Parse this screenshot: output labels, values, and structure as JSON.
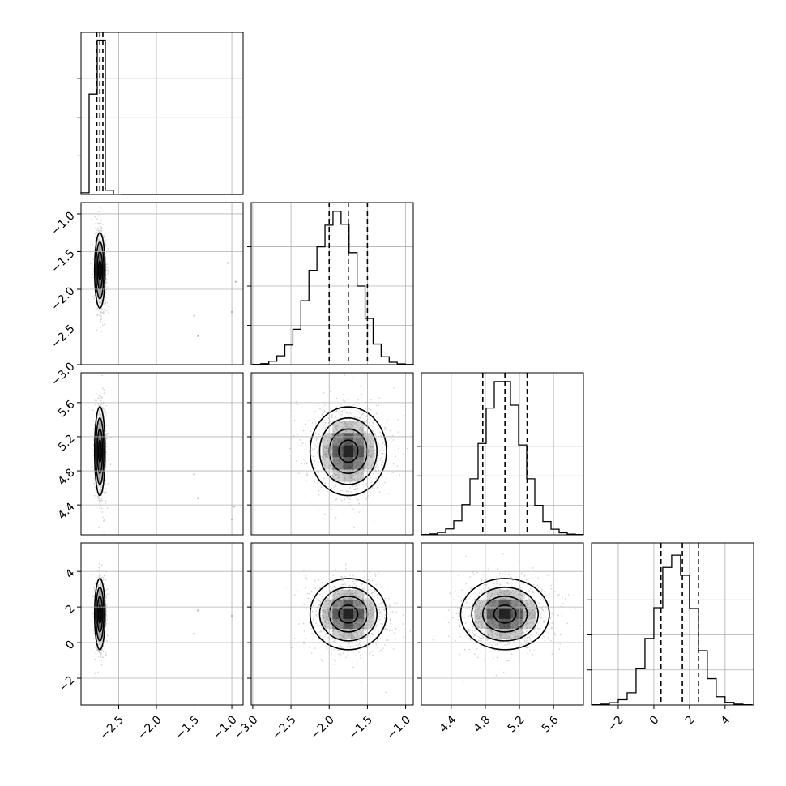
{
  "chart_data": {
    "type": "corner",
    "title": "",
    "parameters": [
      {
        "index": 0,
        "xlim": [
          -3.0,
          -0.85
        ],
        "ticks": [
          -2.5,
          -2.0,
          -1.5,
          -1.0
        ],
        "tick_labels": [
          "−2.5",
          "−2.0",
          "−1.5",
          "−1.0"
        ],
        "mean": -2.75,
        "sd": 0.035,
        "quantiles": [
          -2.79,
          -2.75,
          -2.71
        ]
      },
      {
        "index": 1,
        "xlim": [
          -3.02,
          -0.9
        ],
        "ticks": [
          -3.0,
          -2.5,
          -2.0,
          -1.5,
          -1.0
        ],
        "tick_labels": [
          "−3.0",
          "−2.5",
          "−2.0",
          "−1.5",
          "−1.0"
        ],
        "mean": -1.75,
        "sd": 0.25,
        "quantiles": [
          -2.0,
          -1.75,
          -1.5
        ]
      },
      {
        "index": 2,
        "xlim": [
          4.05,
          5.95
        ],
        "ticks": [
          4.4,
          4.8,
          5.2,
          5.6
        ],
        "tick_labels": [
          "4.4",
          "4.8",
          "5.2",
          "5.6"
        ],
        "mean": 5.03,
        "sd": 0.26,
        "quantiles": [
          4.77,
          5.03,
          5.29
        ]
      },
      {
        "index": 3,
        "xlim": [
          -3.5,
          5.6
        ],
        "ticks": [
          -2,
          0,
          2,
          4
        ],
        "tick_labels": [
          "−2",
          "0",
          "2",
          "4"
        ],
        "mean": 1.6,
        "sd": 1.0,
        "quantiles": [
          0.4,
          1.6,
          2.5
        ]
      }
    ],
    "histograms": [
      {
        "param": 0,
        "bins_range": [
          -3.0,
          -0.85
        ],
        "counts": [
          45,
          2600,
          4000,
          110,
          5,
          0,
          0,
          0,
          0,
          0,
          0,
          0,
          0,
          0,
          0,
          0,
          0,
          0,
          0,
          0
        ],
        "ylim": [
          0,
          4200
        ],
        "yticks": [
          1000,
          2000,
          3000
        ]
      },
      {
        "param": 1,
        "bins_range": [
          -3.0,
          -0.9
        ],
        "counts": [
          3,
          10,
          35,
          90,
          200,
          360,
          650,
          960,
          1200,
          1420,
          1560,
          1430,
          1140,
          800,
          470,
          210,
          80,
          25,
          8,
          2
        ],
        "ylim": [
          0,
          1650
        ],
        "yticks": [
          400,
          800,
          1200
        ]
      },
      {
        "param": 2,
        "bins_range": [
          4.05,
          5.95
        ],
        "counts": [
          2,
          6,
          16,
          40,
          95,
          205,
          380,
          620,
          860,
          1040,
          1040,
          880,
          610,
          380,
          200,
          90,
          38,
          14,
          5,
          2
        ],
        "ylim": [
          0,
          1100
        ],
        "yticks": [
          200,
          400,
          600
        ]
      },
      {
        "param": 3,
        "bins_range": [
          -3.5,
          5.5
        ],
        "counts": [
          3,
          10,
          26,
          60,
          140,
          420,
          760,
          1110,
          1570,
          1710,
          1480,
          1100,
          620,
          300,
          95,
          30,
          10,
          3
        ],
        "ylim": [
          0,
          1850
        ],
        "yticks": [
          400,
          800,
          1200
        ]
      }
    ],
    "scatter_panels": [
      {
        "x_param": 0,
        "y_param": 1,
        "ylim": [
          -3.0,
          -0.85
        ],
        "yticks": [
          -3.0,
          -2.5,
          -2.0,
          -1.5,
          -1.0
        ],
        "ytick_labels": [
          "−3.0",
          "−2.5",
          "−2.0",
          "−1.5",
          "−1.0"
        ],
        "outliers": [
          [
            -1.05,
            -1.65
          ],
          [
            -0.95,
            -1.9
          ],
          [
            -1.5,
            -2.35
          ],
          [
            -1.45,
            -2.62
          ],
          [
            -1.0,
            -2.3
          ]
        ]
      },
      {
        "x_param": 0,
        "y_param": 2,
        "ylim": [
          4.05,
          5.95
        ],
        "yticks": [
          4.4,
          4.8,
          5.2,
          5.6
        ],
        "ytick_labels": [
          "4.4",
          "4.8",
          "5.2",
          "5.6"
        ],
        "outliers": [
          [
            -1.5,
            4.76
          ],
          [
            -1.45,
            4.48
          ],
          [
            -1.0,
            4.23
          ],
          [
            -0.97,
            4.38
          ]
        ]
      },
      {
        "x_param": 1,
        "y_param": 2,
        "ylim": [
          4.05,
          5.95
        ],
        "yticks": [
          4.4,
          4.8,
          5.2,
          5.6
        ],
        "ytick_labels": [
          "4.4",
          "4.8",
          "5.2",
          "5.6"
        ],
        "outliers": []
      },
      {
        "x_param": 0,
        "y_param": 3,
        "ylim": [
          -3.5,
          5.6
        ],
        "yticks": [
          -2,
          0,
          2,
          4
        ],
        "ytick_labels": [
          "−2",
          "0",
          "2",
          "4"
        ],
        "outliers": [
          [
            -1.45,
            1.8
          ],
          [
            -1.5,
            0.5
          ],
          [
            -1.0,
            1.5
          ]
        ]
      },
      {
        "x_param": 1,
        "y_param": 3,
        "ylim": [
          -3.5,
          5.6
        ],
        "yticks": [
          -2,
          0,
          2,
          4
        ],
        "ytick_labels": [
          "−2",
          "0",
          "2",
          "4"
        ],
        "outliers": []
      },
      {
        "x_param": 2,
        "y_param": 3,
        "ylim": [
          -3.5,
          5.6
        ],
        "yticks": [
          -2,
          0,
          2,
          4
        ],
        "ytick_labels": [
          "−2",
          "0",
          "2",
          "4"
        ],
        "outliers": []
      }
    ],
    "contour_levels_sigma": [
      0.5,
      1.0,
      1.5,
      2.0
    ],
    "grid": true,
    "xlabel": "",
    "ylabel": ""
  }
}
